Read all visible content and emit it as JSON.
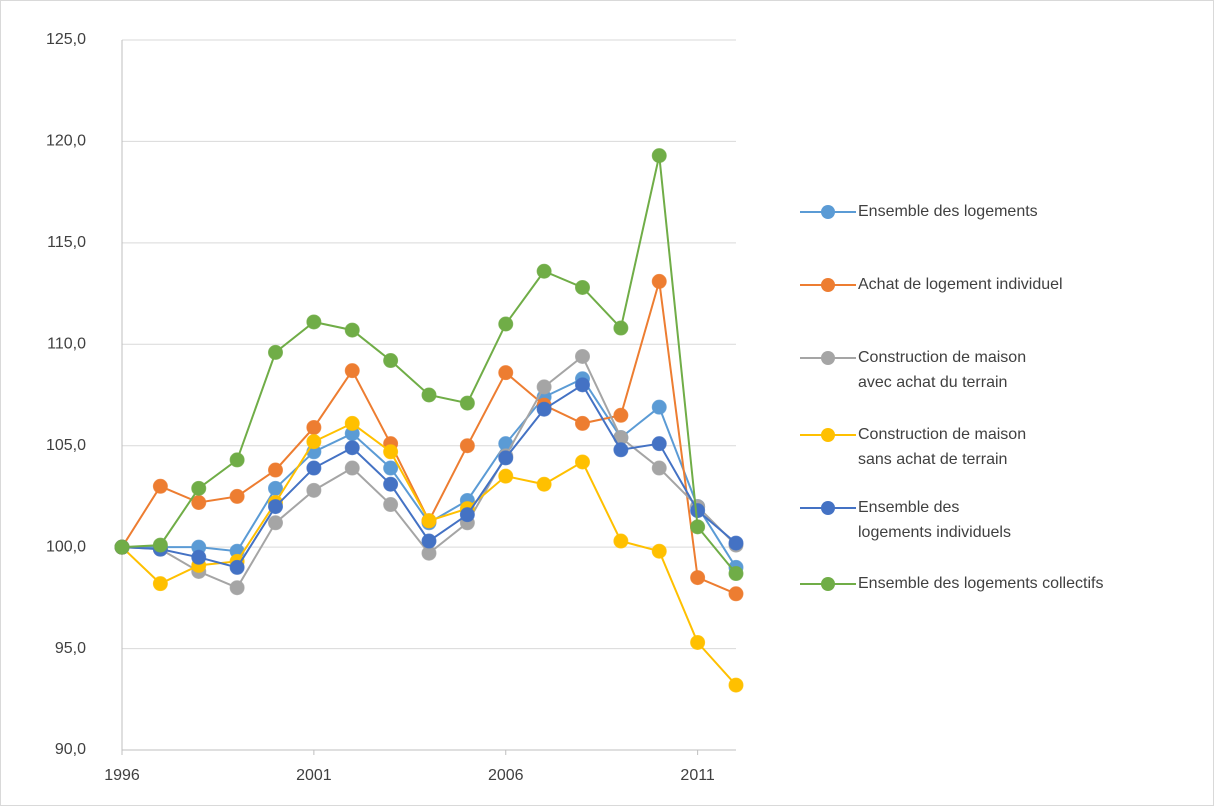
{
  "chart_data": {
    "type": "line",
    "x": [
      1996,
      1997,
      1998,
      1999,
      2000,
      2001,
      2002,
      2003,
      2004,
      2005,
      2006,
      2007,
      2008,
      2009,
      2010,
      2011,
      2012
    ],
    "xlim": [
      1996,
      2012
    ],
    "xticks": [
      1996,
      2001,
      2006,
      2011
    ],
    "ylim": [
      90,
      125
    ],
    "yticks": [
      {
        "value": 90,
        "label": "90,0"
      },
      {
        "value": 95,
        "label": "95,0"
      },
      {
        "value": 100,
        "label": "100,0"
      },
      {
        "value": 105,
        "label": "105,0"
      },
      {
        "value": 110,
        "label": "110,0"
      },
      {
        "value": 115,
        "label": "115,0"
      },
      {
        "value": 120,
        "label": "120,0"
      },
      {
        "value": 125,
        "label": "125,0"
      }
    ],
    "grid": true,
    "legend": "right",
    "series": [
      {
        "name": "Ensemble des logements",
        "color": "#5b9bd5",
        "values": [
          100,
          100.0,
          100.0,
          99.8,
          102.9,
          104.7,
          105.6,
          103.9,
          101.2,
          102.3,
          105.1,
          107.4,
          108.3,
          105.4,
          106.9,
          102.0,
          99.0
        ]
      },
      {
        "name": "Achat de logement individuel",
        "color": "#ed7d31",
        "values": [
          100,
          103.0,
          102.2,
          102.5,
          103.8,
          105.9,
          108.7,
          105.1,
          101.3,
          105.0,
          108.6,
          107.0,
          106.1,
          106.5,
          113.1,
          98.5,
          97.7
        ]
      },
      {
        "name": "Construction de maison avec achat du terrain",
        "color": "#a5a5a5",
        "values": [
          100,
          99.9,
          98.8,
          98.0,
          101.2,
          102.8,
          103.9,
          102.1,
          99.7,
          101.2,
          104.5,
          107.9,
          109.4,
          105.4,
          103.9,
          102.0,
          100.1
        ]
      },
      {
        "name": "Construction de maison sans achat de terrain",
        "color": "#ffc000",
        "values": [
          100,
          98.2,
          99.1,
          99.3,
          102.2,
          105.2,
          106.1,
          104.7,
          101.3,
          101.9,
          103.5,
          103.1,
          104.2,
          100.3,
          99.8,
          95.3,
          93.2
        ]
      },
      {
        "name": "Ensemble des logements individuels",
        "color": "#4472c4",
        "values": [
          100,
          99.9,
          99.5,
          99.0,
          102.0,
          103.9,
          104.9,
          103.1,
          100.3,
          101.6,
          104.4,
          106.8,
          108.0,
          104.8,
          105.1,
          101.8,
          100.2
        ]
      },
      {
        "name": "Ensemble des logements collectifs",
        "color": "#70ad47",
        "values": [
          100,
          100.1,
          102.9,
          104.3,
          109.6,
          111.1,
          110.7,
          109.2,
          107.5,
          107.1,
          111.0,
          113.6,
          112.8,
          110.8,
          119.3,
          101.0,
          98.7
        ]
      }
    ]
  }
}
